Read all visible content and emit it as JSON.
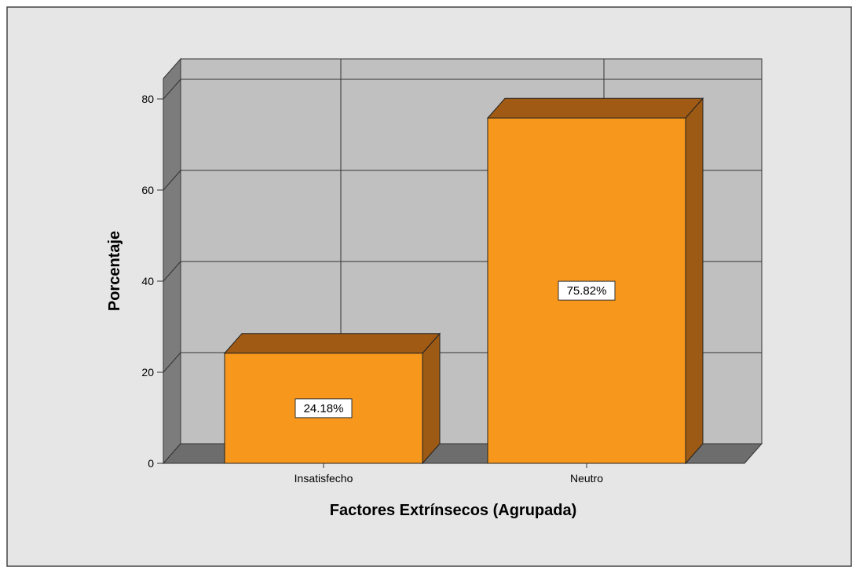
{
  "chart_data": {
    "type": "bar",
    "title": "",
    "xlabel": "Factores Extrínsecos (Agrupada)",
    "ylabel": "Porcentaje",
    "categories": [
      "Insatisfecho",
      "Neutro"
    ],
    "values": [
      24.18,
      75.82
    ],
    "data_labels": [
      "24.18%",
      "75.82%"
    ],
    "ylim": [
      0,
      80
    ],
    "yticks": [
      0,
      20,
      40,
      60,
      80
    ],
    "grid": true,
    "legend": "none",
    "colors": {
      "bar_front": "#f7981d",
      "bar_top": "#a05a14",
      "bar_side": "#9c5a14",
      "wall": "#c0c0c0",
      "floor": "#6d6d6d",
      "side_wall": "#7c7c7c",
      "background": "#e6e6e6"
    }
  }
}
